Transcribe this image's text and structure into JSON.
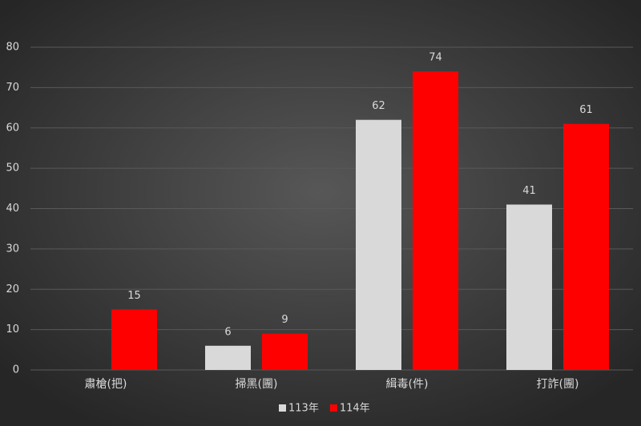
{
  "chart_data": {
    "type": "bar",
    "categories": [
      "肅槍(把)",
      "掃黑(團)",
      "緝毒(件)",
      "打詐(團)"
    ],
    "series": [
      {
        "name": "113年",
        "color": "#d9d9d9",
        "values": [
          null,
          6,
          62,
          41
        ]
      },
      {
        "name": "114年",
        "color": "#ff0000",
        "values": [
          15,
          9,
          74,
          61
        ]
      }
    ],
    "ylim": [
      0,
      80
    ],
    "yticks": [
      0,
      10,
      20,
      30,
      40,
      50,
      60,
      70,
      80
    ],
    "grid": true,
    "legend": "bottom"
  }
}
